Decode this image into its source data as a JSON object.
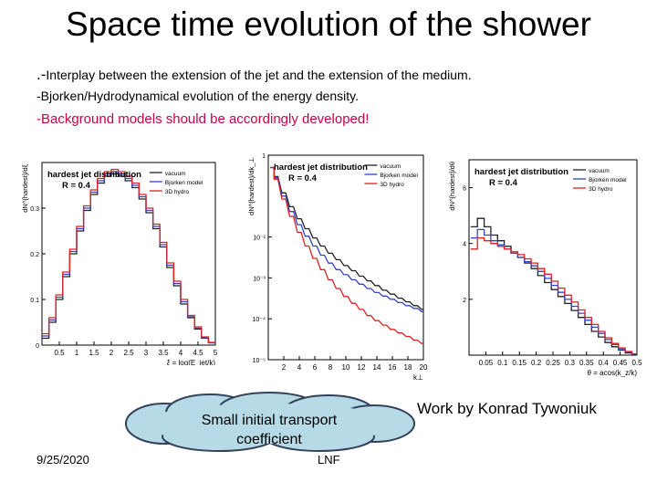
{
  "slide": {
    "title": "Space time evolution of the shower",
    "bullets": [
      {
        "lead": ".-",
        "text": "Interplay between the extension of the jet and the extension of the medium."
      },
      {
        "lead": "",
        "text": "-Bjorken/Hydrodynamical evolution of the energy density."
      },
      {
        "lead": "",
        "text": "-Background models should be accordingly developed!"
      }
    ],
    "callout": {
      "line1": "Small initial transport",
      "line2": "coefficient"
    },
    "credit": "Work by Konrad Tywoniuk",
    "date": "9/25/2020",
    "footer": "LNF",
    "colors": {
      "vacuum": "#222222",
      "bjorken": "#3344cc",
      "hydro": "#dd2222",
      "highlight": "#cc0044",
      "cloud": "#b7dbe6"
    }
  },
  "chart_data": [
    {
      "type": "line",
      "title": "hardest jet distribution",
      "subtitle": "R = 0.4",
      "ylabel": "dN^{hardest}/dξ",
      "xlabel": "ξ = log(E_jet/k)",
      "xlim": [
        0,
        5
      ],
      "ylim": [
        0,
        0.4
      ],
      "xticks": [
        "0.5",
        "1",
        "1.5",
        "2",
        "2.5",
        "3",
        "3.5",
        "4",
        "4.5",
        "5"
      ],
      "yticks": [
        "0",
        "0.1",
        "0.2",
        "0.3"
      ],
      "legend": [
        "vacuum",
        "Bjorken model",
        "3D hydro"
      ],
      "legend_position": "top-right",
      "x": [
        0.1,
        0.3,
        0.5,
        0.7,
        0.9,
        1.1,
        1.3,
        1.5,
        1.7,
        1.9,
        2.1,
        2.3,
        2.5,
        2.7,
        2.9,
        3.1,
        3.3,
        3.5,
        3.7,
        3.9,
        4.1,
        4.3,
        4.5,
        4.7,
        4.9
      ],
      "series": [
        {
          "name": "vacuum",
          "values": [
            0.015,
            0.05,
            0.1,
            0.15,
            0.2,
            0.25,
            0.295,
            0.33,
            0.355,
            0.37,
            0.375,
            0.37,
            0.36,
            0.345,
            0.32,
            0.29,
            0.255,
            0.215,
            0.17,
            0.13,
            0.09,
            0.06,
            0.035,
            0.015,
            0.005
          ]
        },
        {
          "name": "Bjorken model",
          "values": [
            0.02,
            0.055,
            0.105,
            0.155,
            0.205,
            0.255,
            0.3,
            0.335,
            0.36,
            0.375,
            0.38,
            0.375,
            0.365,
            0.35,
            0.325,
            0.295,
            0.26,
            0.22,
            0.175,
            0.135,
            0.095,
            0.062,
            0.037,
            0.016,
            0.005
          ]
        },
        {
          "name": "3D hydro",
          "values": [
            0.025,
            0.06,
            0.11,
            0.16,
            0.21,
            0.26,
            0.305,
            0.34,
            0.365,
            0.38,
            0.385,
            0.38,
            0.37,
            0.355,
            0.33,
            0.3,
            0.265,
            0.225,
            0.18,
            0.14,
            0.1,
            0.065,
            0.04,
            0.018,
            0.006
          ]
        }
      ]
    },
    {
      "type": "line",
      "title": "hardest jet distribution",
      "subtitle": "R = 0.4",
      "ylabel": "dN^{hardest}/dk_⊥",
      "xlabel": "k⊥",
      "xlim": [
        0,
        20
      ],
      "log_y": true,
      "ylim": [
        1e-05,
        1
      ],
      "xticks": [
        "2",
        "4",
        "6",
        "8",
        "10",
        "12",
        "14",
        "16",
        "18",
        "20"
      ],
      "yticks": [
        "1",
        "10⁻²",
        "10⁻³",
        "10⁻⁴",
        "10⁻⁵"
      ],
      "legend": [
        "vacuum",
        "Bjorken model",
        "3D hydro"
      ],
      "legend_position": "top-right",
      "x": [
        0.5,
        1,
        2,
        3,
        4,
        5,
        6,
        7,
        8,
        9,
        10,
        11,
        12,
        13,
        14,
        15,
        16,
        17,
        18,
        19,
        20
      ],
      "series": [
        {
          "name": "vacuum",
          "values": [
            0.5,
            0.3,
            0.12,
            0.055,
            0.028,
            0.016,
            0.0095,
            0.006,
            0.004,
            0.0028,
            0.002,
            0.0015,
            0.0011,
            0.00085,
            0.00065,
            0.0005,
            0.0004,
            0.00032,
            0.00026,
            0.00021,
            0.00017
          ]
        },
        {
          "name": "Bjorken model",
          "values": [
            0.5,
            0.28,
            0.1,
            0.042,
            0.02,
            0.0105,
            0.006,
            0.0036,
            0.0023,
            0.0016,
            0.0012,
            0.0009,
            0.0007,
            0.00055,
            0.00044,
            0.00036,
            0.0003,
            0.00025,
            0.00021,
            0.00018,
            0.00015
          ]
        },
        {
          "name": "3D hydro",
          "values": [
            0.5,
            0.26,
            0.085,
            0.032,
            0.013,
            0.006,
            0.003,
            0.0016,
            0.0009,
            0.00055,
            0.00035,
            0.00024,
            0.00017,
            0.00012,
            9e-05,
            7e-05,
            5.5e-05,
            4.5e-05,
            3.7e-05,
            3e-05,
            2.5e-05
          ]
        }
      ]
    },
    {
      "type": "line",
      "title": "hardest jet distribution",
      "subtitle": "R = 0.4",
      "ylabel": "dN^{hardest}/dθ",
      "xlabel": "θ = acos(k_z/k)",
      "xlim": [
        0,
        0.5
      ],
      "ylim": [
        0,
        7
      ],
      "xticks": [
        "0.05",
        "0.1",
        "0.15",
        "0.2",
        "0.25",
        "0.3",
        "0.35",
        "0.4",
        "0.45",
        "0.5"
      ],
      "yticks": [
        "2",
        "4",
        "6"
      ],
      "legend": [
        "vacuum",
        "Bjorken model",
        "3D hydro"
      ],
      "legend_position": "top-right",
      "x": [
        0.015,
        0.035,
        0.055,
        0.075,
        0.095,
        0.115,
        0.135,
        0.155,
        0.175,
        0.195,
        0.215,
        0.235,
        0.255,
        0.275,
        0.295,
        0.315,
        0.335,
        0.355,
        0.375,
        0.395,
        0.415,
        0.435,
        0.455,
        0.475,
        0.495
      ],
      "series": [
        {
          "name": "vacuum",
          "values": [
            4.6,
            4.9,
            4.6,
            4.3,
            4.1,
            3.9,
            3.7,
            3.5,
            3.3,
            3.1,
            2.85,
            2.6,
            2.35,
            2.1,
            1.85,
            1.6,
            1.35,
            1.1,
            0.85,
            0.65,
            0.45,
            0.3,
            0.18,
            0.08,
            0.03
          ]
        },
        {
          "name": "Bjorken model",
          "values": [
            4.2,
            4.5,
            4.3,
            4.1,
            3.95,
            3.8,
            3.65,
            3.5,
            3.35,
            3.2,
            3.0,
            2.75,
            2.5,
            2.25,
            2.0,
            1.75,
            1.5,
            1.25,
            1.0,
            0.78,
            0.56,
            0.38,
            0.23,
            0.11,
            0.04
          ]
        },
        {
          "name": "3D hydro",
          "values": [
            3.8,
            4.2,
            4.1,
            4.0,
            3.9,
            3.8,
            3.7,
            3.6,
            3.45,
            3.3,
            3.1,
            2.9,
            2.65,
            2.4,
            2.15,
            1.9,
            1.62,
            1.35,
            1.1,
            0.85,
            0.62,
            0.42,
            0.26,
            0.13,
            0.05
          ]
        }
      ]
    }
  ]
}
